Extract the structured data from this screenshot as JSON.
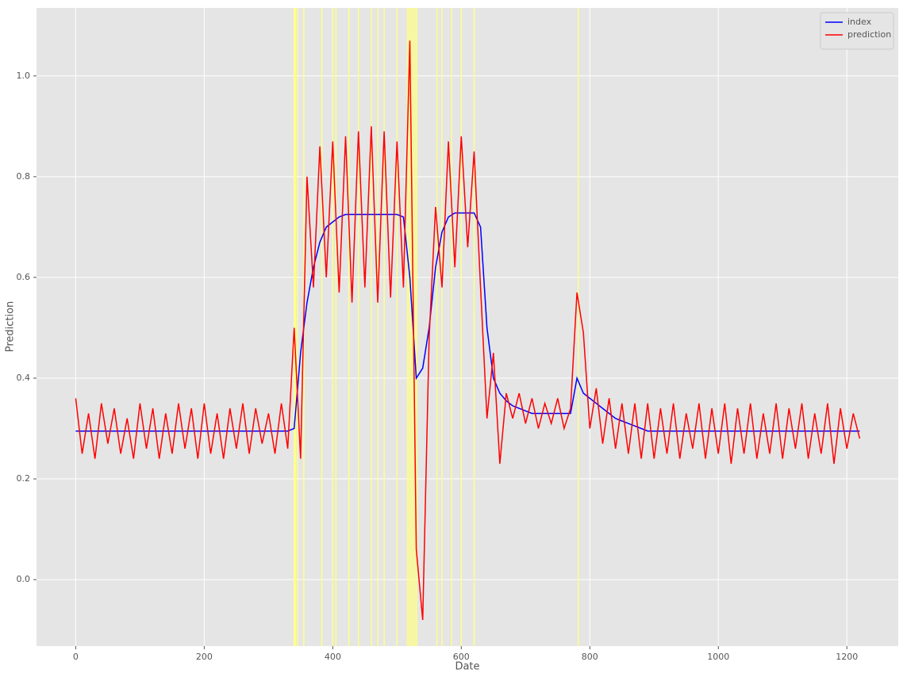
{
  "chart_data": {
    "type": "line",
    "xlabel": "Date",
    "ylabel": "Prediction",
    "x": [
      0,
      10,
      20,
      30,
      40,
      50,
      60,
      70,
      80,
      90,
      100,
      110,
      120,
      130,
      140,
      150,
      160,
      170,
      180,
      190,
      200,
      210,
      220,
      230,
      240,
      250,
      260,
      270,
      280,
      290,
      300,
      310,
      320,
      330,
      340,
      350,
      360,
      370,
      380,
      390,
      400,
      410,
      420,
      430,
      440,
      450,
      460,
      470,
      480,
      490,
      500,
      510,
      520,
      530,
      540,
      550,
      560,
      570,
      580,
      590,
      600,
      610,
      620,
      630,
      640,
      650,
      660,
      670,
      680,
      690,
      700,
      710,
      720,
      730,
      740,
      750,
      760,
      770,
      780,
      790,
      800,
      810,
      820,
      830,
      840,
      850,
      860,
      870,
      880,
      890,
      900,
      910,
      920,
      930,
      940,
      950,
      960,
      970,
      980,
      990,
      1000,
      1010,
      1020,
      1030,
      1040,
      1050,
      1060,
      1070,
      1080,
      1090,
      1100,
      1110,
      1120,
      1130,
      1140,
      1150,
      1160,
      1170,
      1180,
      1190,
      1200,
      1210,
      1220
    ],
    "series": [
      {
        "name": "index",
        "color": "#0000ff",
        "values": [
          0.295,
          0.295,
          0.295,
          0.295,
          0.295,
          0.295,
          0.295,
          0.295,
          0.295,
          0.295,
          0.295,
          0.295,
          0.295,
          0.295,
          0.295,
          0.295,
          0.295,
          0.295,
          0.295,
          0.295,
          0.295,
          0.295,
          0.295,
          0.295,
          0.295,
          0.295,
          0.295,
          0.295,
          0.295,
          0.295,
          0.295,
          0.295,
          0.295,
          0.295,
          0.3,
          0.45,
          0.55,
          0.62,
          0.67,
          0.7,
          0.71,
          0.72,
          0.725,
          0.725,
          0.725,
          0.725,
          0.725,
          0.725,
          0.725,
          0.725,
          0.725,
          0.72,
          0.6,
          0.4,
          0.42,
          0.5,
          0.62,
          0.69,
          0.72,
          0.728,
          0.728,
          0.728,
          0.728,
          0.7,
          0.5,
          0.4,
          0.37,
          0.355,
          0.345,
          0.34,
          0.335,
          0.33,
          0.33,
          0.33,
          0.33,
          0.33,
          0.33,
          0.33,
          0.4,
          0.37,
          0.36,
          0.35,
          0.34,
          0.33,
          0.32,
          0.315,
          0.31,
          0.305,
          0.3,
          0.295,
          0.295,
          0.295,
          0.295,
          0.295,
          0.295,
          0.295,
          0.295,
          0.295,
          0.295,
          0.295,
          0.295,
          0.295,
          0.295,
          0.295,
          0.295,
          0.295,
          0.295,
          0.295,
          0.295,
          0.295,
          0.295,
          0.295,
          0.295,
          0.295,
          0.295,
          0.295,
          0.295,
          0.295,
          0.295,
          0.295,
          0.295,
          0.295,
          0.295
        ]
      },
      {
        "name": "prediction",
        "color": "#ff0000",
        "values": [
          0.36,
          0.25,
          0.33,
          0.24,
          0.35,
          0.27,
          0.34,
          0.25,
          0.32,
          0.24,
          0.35,
          0.26,
          0.34,
          0.24,
          0.33,
          0.25,
          0.35,
          0.26,
          0.34,
          0.24,
          0.35,
          0.25,
          0.33,
          0.24,
          0.34,
          0.26,
          0.35,
          0.25,
          0.34,
          0.27,
          0.33,
          0.25,
          0.35,
          0.26,
          0.5,
          0.24,
          0.8,
          0.58,
          0.86,
          0.6,
          0.87,
          0.57,
          0.88,
          0.55,
          0.89,
          0.58,
          0.9,
          0.55,
          0.89,
          0.56,
          0.87,
          0.58,
          1.07,
          0.06,
          -0.08,
          0.48,
          0.74,
          0.58,
          0.87,
          0.62,
          0.88,
          0.66,
          0.85,
          0.58,
          0.32,
          0.45,
          0.23,
          0.37,
          0.32,
          0.37,
          0.31,
          0.36,
          0.3,
          0.35,
          0.31,
          0.36,
          0.3,
          0.34,
          0.57,
          0.49,
          0.3,
          0.38,
          0.27,
          0.36,
          0.26,
          0.35,
          0.25,
          0.35,
          0.24,
          0.35,
          0.24,
          0.34,
          0.25,
          0.35,
          0.24,
          0.33,
          0.26,
          0.35,
          0.24,
          0.34,
          0.25,
          0.35,
          0.23,
          0.34,
          0.25,
          0.35,
          0.24,
          0.33,
          0.25,
          0.35,
          0.24,
          0.34,
          0.26,
          0.35,
          0.24,
          0.33,
          0.25,
          0.35,
          0.23,
          0.34,
          0.26,
          0.33,
          0.28
        ]
      }
    ],
    "highlights": [
      340,
      342,
      345,
      355,
      383,
      400,
      405,
      425,
      440,
      460,
      470,
      480,
      500,
      562,
      570,
      585,
      600,
      620,
      782
    ],
    "highlight_band": [
      515,
      532
    ],
    "highlight_color": "#ffff88",
    "xlim": [
      -61,
      1280
    ],
    "ylim": [
      -0.132,
      1.135
    ],
    "xticks": [
      0,
      200,
      400,
      600,
      800,
      1000,
      1200
    ],
    "yticks": [
      {
        "value": 0,
        "label": "0.0"
      },
      0.2,
      0.4,
      0.6,
      0.8,
      {
        "value": 1,
        "label": "1.0"
      }
    ],
    "grid": true,
    "legend": "upper-right"
  }
}
